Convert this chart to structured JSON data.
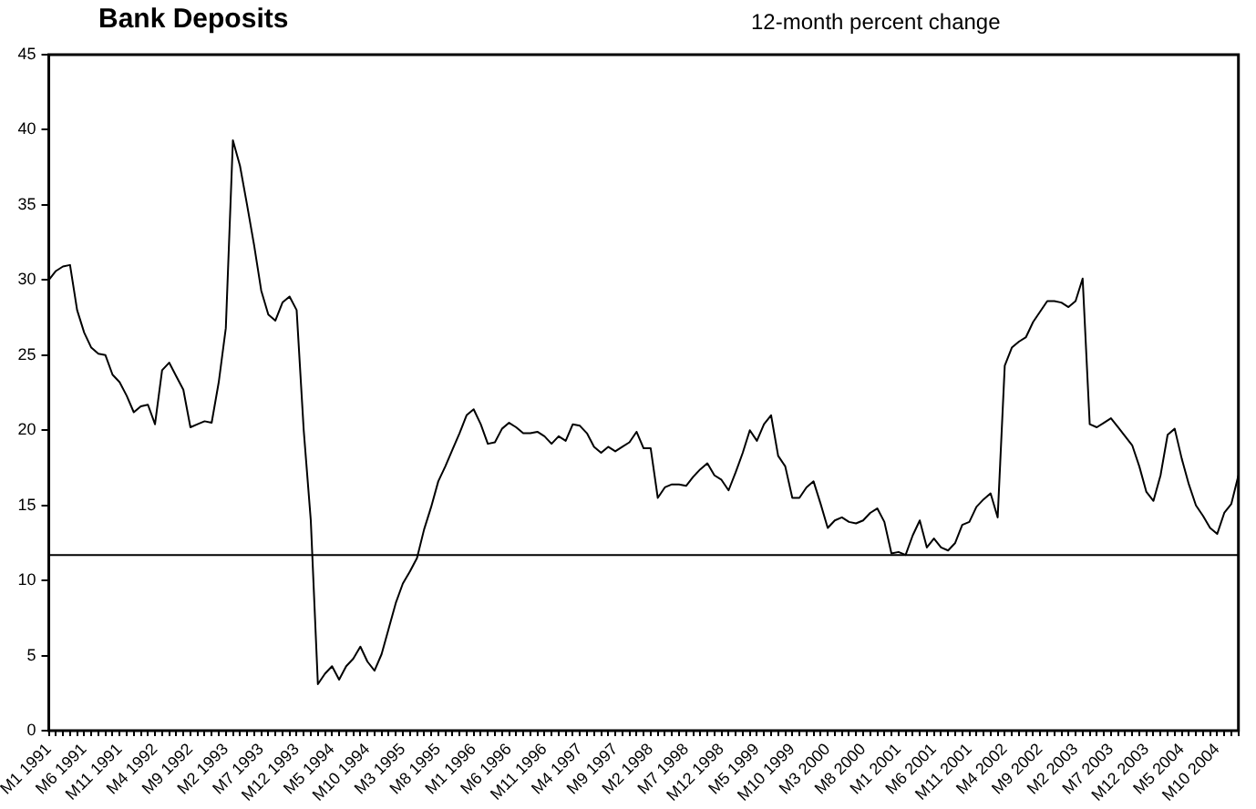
{
  "chart_data": {
    "type": "line",
    "title": "Bank Deposits",
    "subtitle": "12-month percent change",
    "categories": [
      "M1 1991",
      null,
      null,
      null,
      null,
      "M6 1991",
      null,
      null,
      null,
      null,
      "M11 1991",
      null,
      null,
      null,
      null,
      "M4 1992",
      null,
      null,
      null,
      null,
      "M9 1992",
      null,
      null,
      null,
      null,
      "M2 1993",
      null,
      null,
      null,
      null,
      "M7 1993",
      null,
      null,
      null,
      null,
      "M12 1993",
      null,
      null,
      null,
      null,
      "M5 1994",
      null,
      null,
      null,
      null,
      "M10 1994",
      null,
      null,
      null,
      null,
      "M3 1995",
      null,
      null,
      null,
      null,
      "M8 1995",
      null,
      null,
      null,
      null,
      "M1 1996",
      null,
      null,
      null,
      null,
      "M6 1996",
      null,
      null,
      null,
      null,
      "M11 1996",
      null,
      null,
      null,
      null,
      "M4 1997",
      null,
      null,
      null,
      null,
      "M9 1997",
      null,
      null,
      null,
      null,
      "M2 1998",
      null,
      null,
      null,
      null,
      "M7 1998",
      null,
      null,
      null,
      null,
      "M12 1998",
      null,
      null,
      null,
      null,
      "M5 1999",
      null,
      null,
      null,
      null,
      "M10 1999",
      null,
      null,
      null,
      null,
      "M3 2000",
      null,
      null,
      null,
      null,
      "M8 2000",
      null,
      null,
      null,
      null,
      "M1 2001",
      null,
      null,
      null,
      null,
      "M6 2001",
      null,
      null,
      null,
      null,
      "M11 2001",
      null,
      null,
      null,
      null,
      "M4 2002",
      null,
      null,
      null,
      null,
      "M9 2002",
      null,
      null,
      null,
      null,
      "M2 2003",
      null,
      null,
      null,
      null,
      "M7 2003",
      null,
      null,
      null,
      null,
      "M12 2003",
      null,
      null,
      null,
      null,
      "M5 2004",
      null,
      null,
      null,
      null,
      "M10 2004",
      null,
      null,
      null
    ],
    "series": [
      {
        "color": "#000000",
        "values": [
          30.0,
          30.6,
          30.9,
          31.0,
          28.0,
          26.5,
          25.5,
          25.1,
          25.0,
          23.7,
          23.2,
          22.3,
          21.2,
          21.6,
          21.7,
          20.4,
          24.0,
          24.5,
          23.6,
          22.7,
          20.2,
          20.4,
          20.6,
          20.5,
          23.2,
          26.8,
          39.3,
          37.6,
          35.0,
          32.3,
          29.3,
          27.7,
          27.3,
          28.5,
          28.9,
          28.0,
          20.0,
          14.0,
          3.1,
          3.8,
          4.3,
          3.4,
          4.3,
          4.8,
          5.6,
          4.6,
          4.0,
          5.1,
          6.8,
          8.5,
          9.8,
          10.6,
          11.5,
          13.4,
          14.9,
          16.6,
          17.6,
          18.7,
          19.8,
          21.0,
          21.4,
          20.4,
          19.1,
          19.2,
          20.1,
          20.5,
          20.2,
          19.8,
          19.8,
          19.9,
          19.6,
          19.1,
          19.6,
          19.3,
          20.4,
          20.3,
          19.8,
          18.9,
          18.5,
          18.9,
          18.6,
          18.9,
          19.2,
          19.9,
          18.8,
          18.8,
          15.5,
          16.2,
          16.4,
          16.4,
          16.3,
          16.9,
          17.4,
          17.8,
          17.0,
          16.7,
          16.0,
          17.2,
          18.5,
          20.0,
          19.3,
          20.4,
          21.0,
          18.3,
          17.6,
          15.5,
          15.5,
          16.2,
          16.6,
          15.1,
          13.5,
          14.0,
          14.2,
          13.9,
          13.8,
          14.0,
          14.5,
          14.8,
          13.9,
          11.8,
          11.9,
          11.7,
          13.0,
          14.0,
          12.2,
          12.8,
          12.2,
          12.0,
          12.5,
          13.7,
          13.9,
          14.9,
          15.4,
          15.8,
          14.2,
          24.3,
          25.5,
          25.9,
          26.2,
          27.2,
          27.9,
          28.6,
          28.6,
          28.5,
          28.2,
          28.6,
          30.1,
          20.4,
          20.2,
          20.5,
          20.8,
          20.2,
          19.6,
          19.0,
          17.6,
          15.9,
          15.3,
          17.0,
          19.7,
          20.1,
          18.1,
          16.4,
          15.0,
          14.3,
          13.5,
          13.1,
          14.5,
          15.1,
          17.0
        ]
      }
    ],
    "ylim": [
      0,
      45
    ],
    "yticks": [
      0,
      5,
      10,
      15,
      20,
      25,
      30,
      35,
      40,
      45
    ],
    "ref_lines": [
      {
        "axis": "y",
        "value": 11.7,
        "color": "#000000"
      }
    ],
    "grid": false,
    "legend": false
  }
}
